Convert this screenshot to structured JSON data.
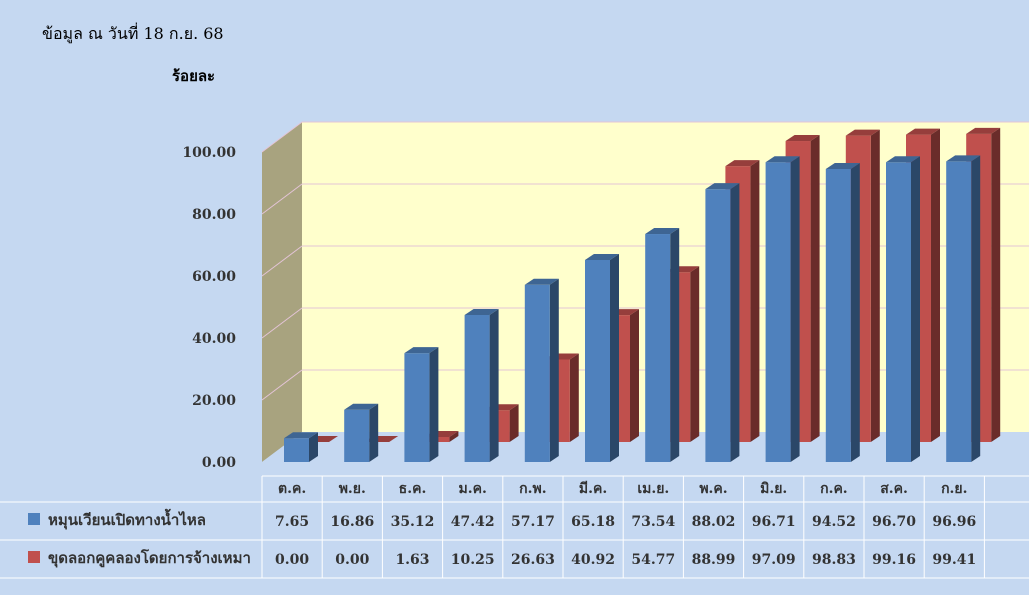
{
  "header": {
    "date_note": "ข้อมูล ณ วันที่ 18 ก.ย. 68",
    "unit": "ร้อยละ"
  },
  "colors": {
    "background": "#c5d8f1",
    "plot_back_wall": "#ffffcc",
    "plot_side_wall": "#a8a37f",
    "floor": "#c5d8f1",
    "series_blue": "#4f81bd",
    "series_red": "#c0504d",
    "gridline": "#e3c4d6"
  },
  "chart_data": {
    "type": "bar",
    "style": "3d-clustered-column",
    "categories": [
      "ต.ค.",
      "พ.ย.",
      "ธ.ค.",
      "ม.ค.",
      "ก.พ.",
      "มี.ค.",
      "เม.ย.",
      "พ.ค.",
      "มิ.ย.",
      "ก.ค.",
      "ส.ค.",
      "ก.ย."
    ],
    "series": [
      {
        "name": "หมุนเวียนเปิดทางน้ำไหล",
        "color": "#4f81bd",
        "values": [
          7.65,
          16.86,
          35.12,
          47.42,
          57.17,
          65.18,
          73.54,
          88.02,
          96.71,
          94.52,
          96.7,
          96.96
        ],
        "labels": [
          "7.65",
          "16.86",
          "35.12",
          "47.42",
          "57.17",
          "65.18",
          "73.54",
          "88.02",
          "96.71",
          "94.52",
          "96.70",
          "96.96"
        ]
      },
      {
        "name": "ขุดลอกคูคลองโดยการจ้างเหมา",
        "color": "#c0504d",
        "values": [
          0.0,
          0.0,
          1.63,
          10.25,
          26.63,
          40.92,
          54.77,
          88.99,
          97.09,
          98.83,
          99.16,
          99.41
        ],
        "labels": [
          "0.00",
          "0.00",
          "1.63",
          "10.25",
          "26.63",
          "40.92",
          "54.77",
          "88.99",
          "97.09",
          "98.83",
          "99.16",
          "99.41"
        ]
      }
    ],
    "ylim": [
      0,
      100
    ],
    "yticks": [
      "0.00",
      "20.00",
      "40.00",
      "60.00",
      "80.00",
      "100.00"
    ],
    "ylabel": "ร้อยละ",
    "grid": true,
    "legend": "data-table"
  }
}
